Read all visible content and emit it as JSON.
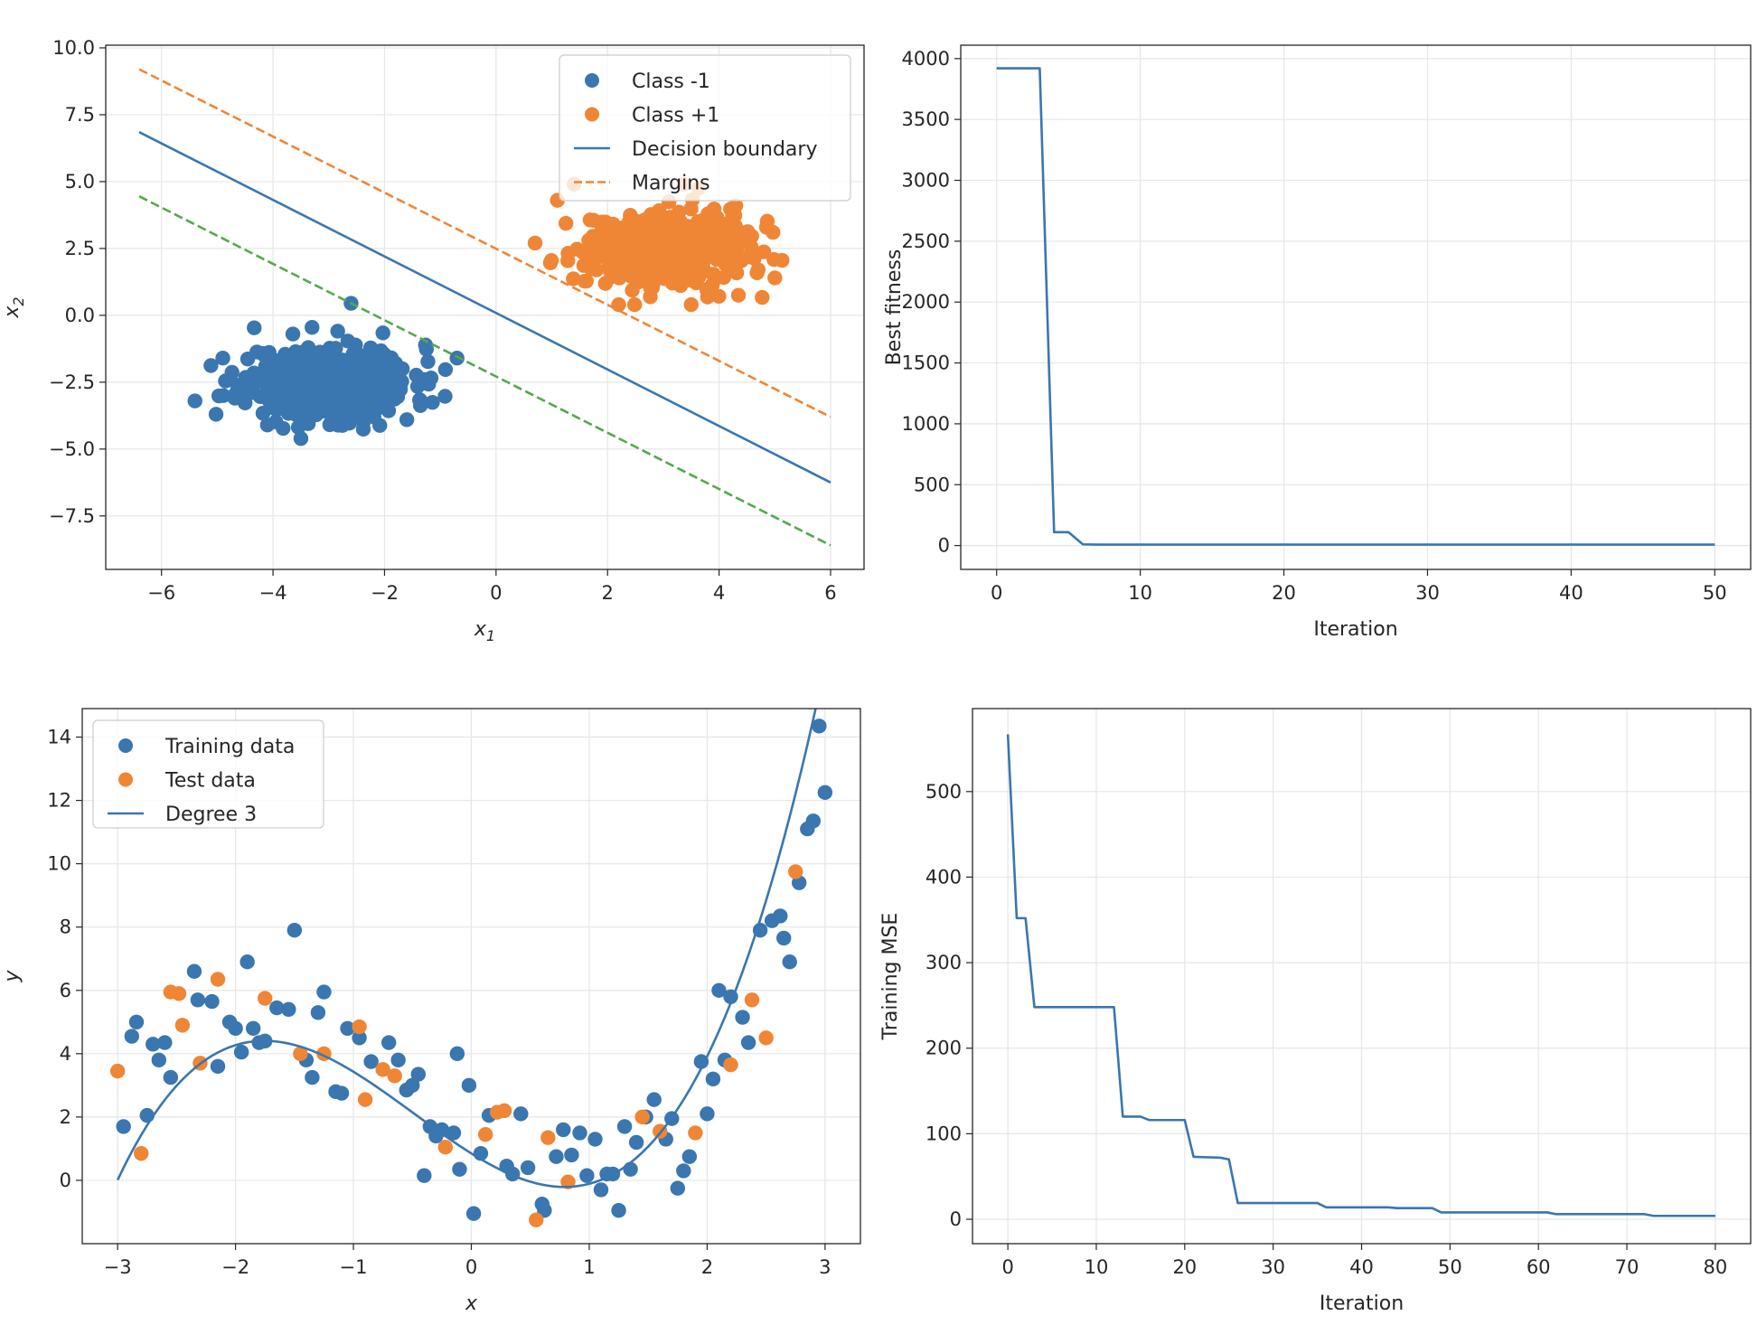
{
  "colors": {
    "blue": "#3a76af",
    "orange": "#ef8636",
    "green": "#54a84d",
    "grid": "#e6e6e6",
    "axes": "#262626"
  },
  "chart_data": [
    {
      "id": "svm",
      "type": "scatter",
      "xlabel": "x1",
      "ylabel": "x2",
      "xlim": [
        -7,
        6.6
      ],
      "ylim": [
        -9.5,
        10.1
      ],
      "xticks": [
        "−6",
        "−4",
        "−2",
        "0",
        "2",
        "4",
        "6"
      ],
      "yticks": [
        "10.0",
        "7.5",
        "5.0",
        "2.5",
        "0.0",
        "−2.5",
        "−5.0",
        "−7.5"
      ],
      "grid": true,
      "legend": {
        "position": "upper right",
        "entries": [
          {
            "label": "Class -1",
            "marker": "point",
            "color": "#3a76af"
          },
          {
            "label": "Class +1",
            "marker": "point",
            "color": "#ef8636"
          },
          {
            "label": "Decision boundary",
            "marker": "line",
            "color": "#3a76af"
          },
          {
            "label": "Margins",
            "marker": "dashed",
            "color": "#ef8636"
          }
        ]
      },
      "lines": [
        {
          "name": "Decision boundary",
          "style": "solid",
          "color": "#3a76af",
          "points": [
            [
              -6.4,
              6.85
            ],
            [
              6.0,
              -6.25
            ]
          ]
        },
        {
          "name": "Margins",
          "style": "dashed",
          "color": "#ef8636",
          "points": [
            [
              -6.4,
              9.2
            ],
            [
              6.0,
              -3.8
            ]
          ]
        },
        {
          "style": "dashed",
          "color": "#54a84d",
          "points": [
            [
              -6.4,
              4.45
            ],
            [
              6.0,
              -8.6
            ]
          ]
        }
      ],
      "clusters": [
        {
          "name": "Class -1",
          "color": "#3a76af",
          "center": [
            -3.0,
            -2.5
          ],
          "spread": [
            0.75,
            0.7
          ],
          "count": 500,
          "seed": 11,
          "outliers": [
            [
              -2.6,
              0.45
            ],
            [
              -5.4,
              -3.2
            ],
            [
              -0.7,
              -1.6
            ],
            [
              -3.3,
              -0.45
            ],
            [
              -4.9,
              -1.6
            ],
            [
              -1.6,
              -3.9
            ],
            [
              -4.1,
              -4.1
            ]
          ]
        },
        {
          "name": "Class +1",
          "color": "#ef8636",
          "center": [
            3.0,
            2.5
          ],
          "spread": [
            0.75,
            0.7
          ],
          "count": 500,
          "seed": 29,
          "outliers": [
            [
              1.1,
              4.3
            ],
            [
              5.0,
              1.4
            ],
            [
              0.7,
              2.7
            ],
            [
              2.2,
              0.4
            ],
            [
              3.5,
              0.4
            ],
            [
              1.4,
              4.9
            ],
            [
              4.3,
              4.1
            ]
          ]
        }
      ]
    },
    {
      "id": "fitness",
      "type": "line",
      "xlabel": "Iteration",
      "ylabel": "Best fitness",
      "xlim": [
        -2.5,
        52.5
      ],
      "ylim": [
        -196,
        4110
      ],
      "xticks": [
        "0",
        "10",
        "20",
        "30",
        "40",
        "50"
      ],
      "yticks": [
        "4000",
        "3500",
        "3000",
        "2500",
        "2000",
        "1500",
        "1000",
        "500",
        "0"
      ],
      "grid": true,
      "series": [
        {
          "color": "#3a76af",
          "x": [
            0,
            1,
            2,
            3,
            4,
            5,
            6,
            7,
            10,
            20,
            30,
            40,
            50
          ],
          "y": [
            3920,
            3920,
            3920,
            3920,
            110,
            110,
            10,
            8,
            8,
            8,
            8,
            8,
            8
          ]
        }
      ]
    },
    {
      "id": "poly",
      "type": "scatter",
      "xlabel": "x",
      "ylabel": "y",
      "xlim": [
        -3.3,
        3.3
      ],
      "ylim": [
        -2.0,
        14.9
      ],
      "xticks": [
        "−3",
        "−2",
        "−1",
        "0",
        "1",
        "2",
        "3"
      ],
      "yticks": [
        "14",
        "12",
        "10",
        "8",
        "6",
        "4",
        "2",
        "0"
      ],
      "grid": true,
      "legend": {
        "position": "upper left",
        "entries": [
          {
            "label": "Training data",
            "marker": "point",
            "color": "#3a76af"
          },
          {
            "label": "Test data",
            "marker": "point",
            "color": "#ef8636"
          },
          {
            "label": "Degree 3",
            "marker": "line",
            "color": "#3a76af"
          }
        ]
      },
      "training": [
        [
          -2.95,
          1.7
        ],
        [
          -2.88,
          4.55
        ],
        [
          -2.84,
          5.0
        ],
        [
          -2.75,
          2.05
        ],
        [
          -2.7,
          4.3
        ],
        [
          -2.65,
          3.8
        ],
        [
          -2.6,
          4.35
        ],
        [
          -2.55,
          3.25
        ],
        [
          -2.35,
          6.6
        ],
        [
          -2.32,
          5.7
        ],
        [
          -2.2,
          5.65
        ],
        [
          -2.15,
          3.6
        ],
        [
          -2.05,
          5.0
        ],
        [
          -2.0,
          4.8
        ],
        [
          -1.95,
          4.05
        ],
        [
          -1.9,
          6.9
        ],
        [
          -1.85,
          4.8
        ],
        [
          -1.8,
          4.35
        ],
        [
          -1.75,
          4.4
        ],
        [
          -1.65,
          5.45
        ],
        [
          -1.55,
          5.4
        ],
        [
          -1.5,
          7.9
        ],
        [
          -1.4,
          3.8
        ],
        [
          -1.35,
          3.25
        ],
        [
          -1.3,
          5.3
        ],
        [
          -1.25,
          5.95
        ],
        [
          -1.15,
          2.8
        ],
        [
          -1.1,
          2.75
        ],
        [
          -1.05,
          4.8
        ],
        [
          -0.95,
          4.5
        ],
        [
          -0.85,
          3.75
        ],
        [
          -0.7,
          4.35
        ],
        [
          -0.62,
          3.8
        ],
        [
          -0.55,
          2.85
        ],
        [
          -0.5,
          3.0
        ],
        [
          -0.45,
          3.35
        ],
        [
          -0.4,
          0.15
        ],
        [
          -0.35,
          1.7
        ],
        [
          -0.3,
          1.4
        ],
        [
          -0.25,
          1.6
        ],
        [
          -0.15,
          1.5
        ],
        [
          -0.12,
          4.0
        ],
        [
          -0.1,
          0.35
        ],
        [
          -0.02,
          3.0
        ],
        [
          0.02,
          -1.05
        ],
        [
          0.08,
          0.85
        ],
        [
          0.15,
          2.05
        ],
        [
          0.3,
          0.45
        ],
        [
          0.35,
          0.2
        ],
        [
          0.42,
          2.1
        ],
        [
          0.48,
          0.4
        ],
        [
          0.6,
          -0.75
        ],
        [
          0.62,
          -0.95
        ],
        [
          0.72,
          0.75
        ],
        [
          0.78,
          1.6
        ],
        [
          0.85,
          0.8
        ],
        [
          0.92,
          1.5
        ],
        [
          0.98,
          0.15
        ],
        [
          1.05,
          1.3
        ],
        [
          1.1,
          -0.3
        ],
        [
          1.15,
          0.2
        ],
        [
          1.2,
          0.2
        ],
        [
          1.25,
          -0.95
        ],
        [
          1.3,
          1.7
        ],
        [
          1.35,
          0.35
        ],
        [
          1.4,
          1.2
        ],
        [
          1.48,
          2.0
        ],
        [
          1.55,
          2.55
        ],
        [
          1.65,
          1.3
        ],
        [
          1.7,
          1.95
        ],
        [
          1.75,
          -0.25
        ],
        [
          1.8,
          0.3
        ],
        [
          1.85,
          0.75
        ],
        [
          1.95,
          3.75
        ],
        [
          2.0,
          2.1
        ],
        [
          2.05,
          3.2
        ],
        [
          2.1,
          6.0
        ],
        [
          2.15,
          3.8
        ],
        [
          2.2,
          5.8
        ],
        [
          2.3,
          5.15
        ],
        [
          2.35,
          4.35
        ],
        [
          2.45,
          7.9
        ],
        [
          2.55,
          8.2
        ],
        [
          2.62,
          8.35
        ],
        [
          2.65,
          7.65
        ],
        [
          2.7,
          6.9
        ],
        [
          2.78,
          9.4
        ],
        [
          2.85,
          11.1
        ],
        [
          2.9,
          11.35
        ],
        [
          2.95,
          14.35
        ],
        [
          3.0,
          12.25
        ]
      ],
      "test": [
        [
          -3.0,
          3.45
        ],
        [
          -2.8,
          0.85
        ],
        [
          -2.55,
          5.95
        ],
        [
          -2.48,
          5.9
        ],
        [
          -2.45,
          4.9
        ],
        [
          -2.3,
          3.7
        ],
        [
          -2.15,
          6.35
        ],
        [
          -1.75,
          5.75
        ],
        [
          -1.45,
          4.0
        ],
        [
          -1.25,
          4.0
        ],
        [
          -0.95,
          4.85
        ],
        [
          -0.9,
          2.55
        ],
        [
          -0.75,
          3.5
        ],
        [
          -0.65,
          3.3
        ],
        [
          -0.22,
          1.05
        ],
        [
          0.12,
          1.45
        ],
        [
          0.22,
          2.15
        ],
        [
          0.28,
          2.2
        ],
        [
          0.55,
          -1.25
        ],
        [
          0.65,
          1.35
        ],
        [
          0.82,
          -0.05
        ],
        [
          1.45,
          2.0
        ],
        [
          1.6,
          1.55
        ],
        [
          1.9,
          1.5
        ],
        [
          2.2,
          3.65
        ],
        [
          2.38,
          5.7
        ],
        [
          2.5,
          4.5
        ],
        [
          2.75,
          9.75
        ]
      ],
      "fit": {
        "name": "Degree 3",
        "color": "#3a76af",
        "coef": [
          0.85,
          0.56,
          0.81,
          -2.33
        ]
      }
    },
    {
      "id": "mse",
      "type": "line",
      "xlabel": "Iteration",
      "ylabel": "Training MSE",
      "xlim": [
        -4,
        84
      ],
      "ylim": [
        -28.5,
        597
      ],
      "xticks": [
        "0",
        "10",
        "20",
        "30",
        "40",
        "50",
        "60",
        "70",
        "80"
      ],
      "yticks": [
        "500",
        "400",
        "300",
        "200",
        "100",
        "0"
      ],
      "grid": true,
      "series": [
        {
          "color": "#3a76af",
          "x": [
            0,
            1,
            2,
            3,
            12,
            13,
            15,
            16,
            20,
            21,
            24,
            25,
            26,
            35,
            36,
            43,
            44,
            48,
            49,
            61,
            62,
            72,
            73,
            80
          ],
          "y": [
            567,
            352,
            352,
            248,
            248,
            120,
            120,
            116,
            116,
            73,
            72,
            70,
            19,
            19,
            14,
            14,
            13,
            13,
            8,
            8,
            6,
            6,
            4,
            4
          ]
        }
      ]
    }
  ]
}
